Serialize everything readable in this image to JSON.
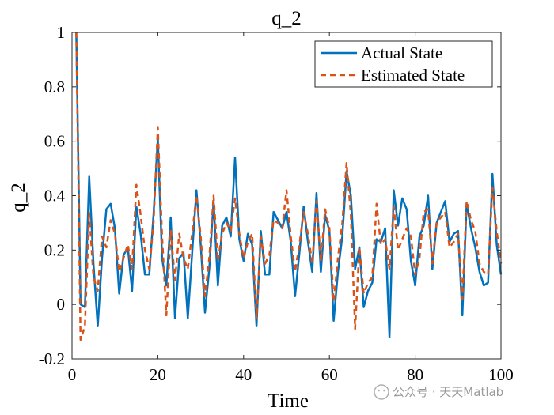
{
  "watermark": "公众号 · 天天Matlab",
  "chart_data": {
    "type": "line",
    "title": "q_2",
    "xlabel": "Time",
    "ylabel": "q_2",
    "xlim": [
      0,
      100
    ],
    "ylim": [
      -0.2,
      1
    ],
    "xticks": [
      0,
      20,
      40,
      60,
      80,
      100
    ],
    "yticks": [
      -0.2,
      0,
      0.2,
      0.4,
      0.6,
      0.8,
      1
    ],
    "ytick_labels": [
      "-0.2",
      "0",
      "0.2",
      "0.4",
      "0.6",
      "0.8",
      "1"
    ],
    "grid": false,
    "legend_position": "top-right",
    "series": [
      {
        "name": "Actual State",
        "color": "#0072BD",
        "style": "solid",
        "x": [
          1,
          2,
          3,
          4,
          5,
          6,
          7,
          8,
          9,
          10,
          11,
          12,
          13,
          14,
          15,
          16,
          17,
          18,
          19,
          20,
          21,
          22,
          23,
          24,
          25,
          26,
          27,
          28,
          29,
          30,
          31,
          32,
          33,
          34,
          35,
          36,
          37,
          38,
          39,
          40,
          41,
          42,
          43,
          44,
          45,
          46,
          47,
          48,
          49,
          50,
          51,
          52,
          53,
          54,
          55,
          56,
          57,
          58,
          59,
          60,
          61,
          62,
          63,
          64,
          65,
          66,
          67,
          68,
          69,
          70,
          71,
          72,
          73,
          74,
          75,
          76,
          77,
          78,
          79,
          80,
          81,
          82,
          83,
          84,
          85,
          86,
          87,
          88,
          89,
          90,
          91,
          92,
          93,
          94,
          95,
          96,
          97,
          98,
          99,
          100
        ],
        "values": [
          1.0,
          0.0,
          -0.01,
          0.47,
          0.15,
          -0.08,
          0.17,
          0.35,
          0.37,
          0.28,
          0.04,
          0.18,
          0.21,
          0.05,
          0.36,
          0.26,
          0.11,
          0.11,
          0.33,
          0.61,
          0.17,
          0.07,
          0.32,
          -0.05,
          0.17,
          0.19,
          -0.05,
          0.19,
          0.42,
          0.22,
          -0.03,
          0.13,
          0.38,
          0.07,
          0.29,
          0.32,
          0.25,
          0.54,
          0.24,
          0.16,
          0.26,
          0.22,
          -0.08,
          0.27,
          0.11,
          0.11,
          0.34,
          0.31,
          0.28,
          0.34,
          0.23,
          0.03,
          0.19,
          0.36,
          0.23,
          0.12,
          0.41,
          0.12,
          0.33,
          0.27,
          -0.06,
          0.12,
          0.25,
          0.49,
          0.4,
          0.13,
          0.21,
          -0.01,
          0.05,
          0.08,
          0.24,
          0.23,
          0.28,
          -0.12,
          0.42,
          0.29,
          0.39,
          0.35,
          0.16,
          0.07,
          0.25,
          0.29,
          0.4,
          0.13,
          0.3,
          0.34,
          0.38,
          0.23,
          0.26,
          0.27,
          -0.04,
          0.37,
          0.28,
          0.21,
          0.12,
          0.07,
          0.08,
          0.48,
          0.22,
          0.11
        ]
      },
      {
        "name": "Estimated State",
        "color": "#D95319",
        "style": "dashed",
        "x": [
          1,
          2,
          3,
          4,
          5,
          6,
          7,
          8,
          9,
          10,
          11,
          12,
          13,
          14,
          15,
          16,
          17,
          18,
          19,
          20,
          21,
          22,
          23,
          24,
          25,
          26,
          27,
          28,
          29,
          30,
          31,
          32,
          33,
          34,
          35,
          36,
          37,
          38,
          39,
          40,
          41,
          42,
          43,
          44,
          45,
          46,
          47,
          48,
          49,
          50,
          51,
          52,
          53,
          54,
          55,
          56,
          57,
          58,
          59,
          60,
          61,
          62,
          63,
          64,
          65,
          66,
          67,
          68,
          69,
          70,
          71,
          72,
          73,
          74,
          75,
          76,
          77,
          78,
          79,
          80,
          81,
          82,
          83,
          84,
          85,
          86,
          87,
          88,
          89,
          90,
          91,
          92,
          93,
          94,
          95,
          96,
          97,
          98,
          99,
          100
        ],
        "values": [
          1.0,
          -0.13,
          -0.08,
          0.34,
          0.1,
          0.05,
          0.25,
          0.21,
          0.31,
          0.26,
          0.12,
          0.17,
          0.22,
          0.13,
          0.44,
          0.33,
          0.2,
          0.13,
          0.3,
          0.65,
          0.25,
          -0.04,
          0.27,
          0.09,
          0.26,
          0.17,
          0.13,
          0.26,
          0.4,
          0.25,
          0.03,
          0.17,
          0.4,
          0.16,
          0.26,
          0.3,
          0.27,
          0.39,
          0.26,
          0.17,
          0.23,
          0.26,
          -0.05,
          0.25,
          0.15,
          0.18,
          0.31,
          0.3,
          0.28,
          0.42,
          0.25,
          0.12,
          0.22,
          0.34,
          0.26,
          0.15,
          0.38,
          0.16,
          0.35,
          0.28,
          0.01,
          0.17,
          0.3,
          0.52,
          0.33,
          -0.09,
          0.21,
          0.04,
          0.08,
          0.1,
          0.37,
          0.22,
          0.24,
          0.13,
          0.36,
          0.2,
          0.24,
          0.28,
          0.25,
          0.11,
          0.17,
          0.34,
          0.35,
          0.15,
          0.3,
          0.32,
          0.34,
          0.21,
          0.23,
          0.26,
          0.02,
          0.38,
          0.31,
          0.27,
          0.15,
          0.12,
          0.11,
          0.43,
          0.27,
          0.15
        ]
      }
    ]
  }
}
